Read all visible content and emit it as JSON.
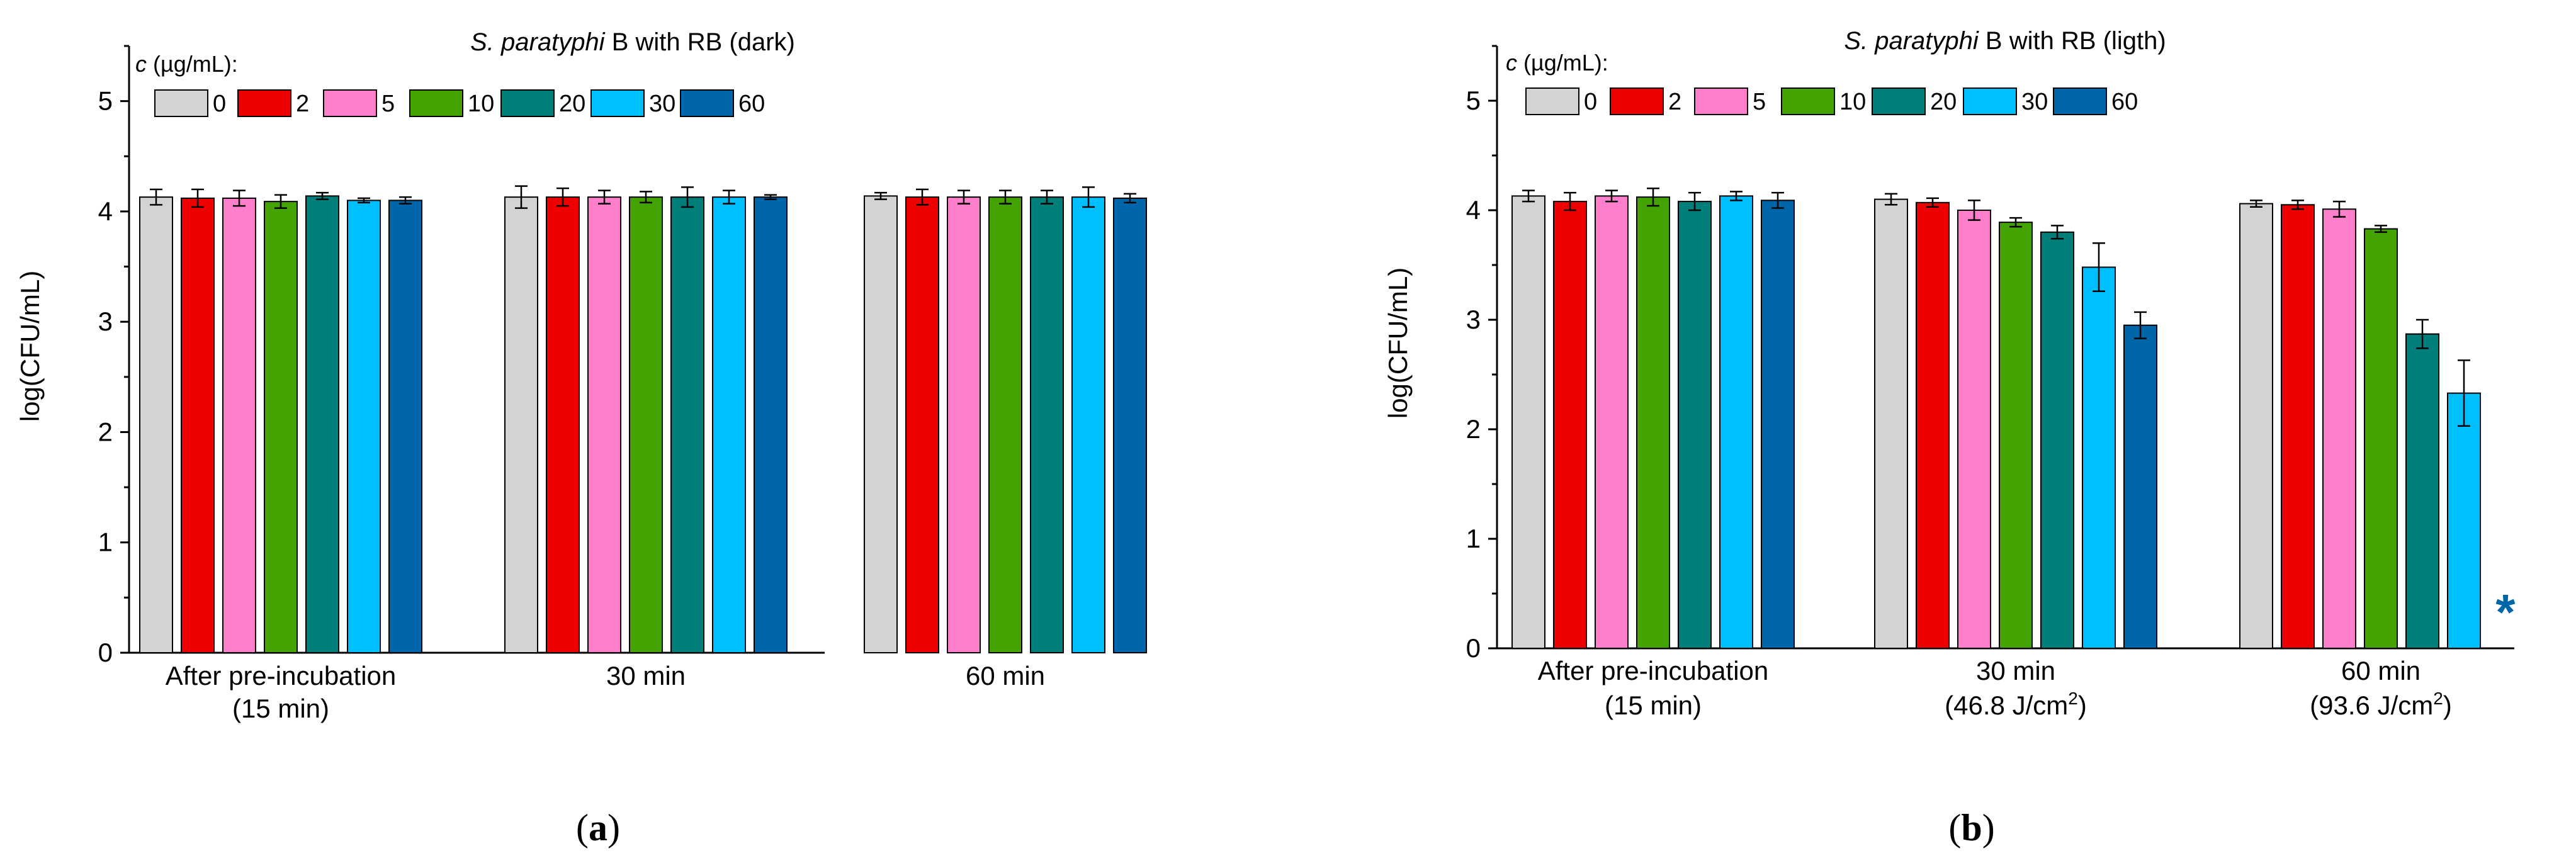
{
  "figure": {
    "panel_labels": [
      "a",
      "b"
    ]
  },
  "chart_data": [
    {
      "type": "bar",
      "panel": "a",
      "title_italic": "S. paratyphi",
      "title_rest": " B with RB (dark)",
      "ylabel": "log(CFU/mL)",
      "xlabel": "",
      "ylim": [
        0,
        5.5
      ],
      "yticks": [
        0,
        1,
        2,
        3,
        4,
        5
      ],
      "legend_title_italic": "c",
      "legend_title_rest": " (µg/mL):",
      "legend_position": "top-left",
      "groups": [
        {
          "line1": "After pre-incubation",
          "line2": "(15 min)",
          "sup": ""
        },
        {
          "line1": "30 min",
          "line2": "",
          "sup": ""
        },
        {
          "line1": "60 min",
          "line2": "",
          "sup": ""
        }
      ],
      "series": [
        {
          "name": "0",
          "color": "#d3d3d3",
          "values": [
            4.13,
            4.13,
            4.14
          ],
          "errors": [
            0.07,
            0.1,
            0.03
          ]
        },
        {
          "name": "2",
          "color": "#ee0000",
          "values": [
            4.12,
            4.13,
            4.13
          ],
          "errors": [
            0.08,
            0.08,
            0.07
          ]
        },
        {
          "name": "5",
          "color": "#ff7fcc",
          "values": [
            4.12,
            4.13,
            4.13
          ],
          "errors": [
            0.07,
            0.06,
            0.06
          ]
        },
        {
          "name": "10",
          "color": "#44a300",
          "values": [
            4.09,
            4.13,
            4.13
          ],
          "errors": [
            0.06,
            0.05,
            0.06
          ]
        },
        {
          "name": "20",
          "color": "#007f7a",
          "values": [
            4.14,
            4.13,
            4.13
          ],
          "errors": [
            0.03,
            0.09,
            0.06
          ]
        },
        {
          "name": "30",
          "color": "#00bfff",
          "values": [
            4.1,
            4.13,
            4.13
          ],
          "errors": [
            0.02,
            0.06,
            0.09
          ]
        },
        {
          "name": "60",
          "color": "#0066aa",
          "values": [
            4.1,
            4.13,
            4.12
          ],
          "errors": [
            0.03,
            0.02,
            0.04
          ]
        }
      ],
      "annotations": []
    },
    {
      "type": "bar",
      "panel": "b",
      "title_italic": "S. paratyphi",
      "title_rest": " B with RB (ligth)",
      "ylabel": "log(CFU/mL)",
      "xlabel": "",
      "ylim": [
        0,
        5.5
      ],
      "yticks": [
        0,
        1,
        2,
        3,
        4,
        5
      ],
      "legend_title_italic": "c",
      "legend_title_rest": " (µg/mL):",
      "legend_position": "top-left",
      "groups": [
        {
          "line1": "After pre-incubation",
          "line2": "(15 min)",
          "sup": ""
        },
        {
          "line1": "30 min",
          "line2": "(46.8 J/cm",
          "sup": "2"
        },
        {
          "line1": "60 min",
          "line2": "(93.6 J/cm",
          "sup": "2"
        }
      ],
      "series": [
        {
          "name": "0",
          "color": "#d3d3d3",
          "values": [
            4.13,
            4.1,
            4.06
          ],
          "errors": [
            0.05,
            0.05,
            0.03
          ]
        },
        {
          "name": "2",
          "color": "#ee0000",
          "values": [
            4.08,
            4.07,
            4.05
          ],
          "errors": [
            0.08,
            0.04,
            0.04
          ]
        },
        {
          "name": "5",
          "color": "#ff7fcc",
          "values": [
            4.13,
            4.0,
            4.01
          ],
          "errors": [
            0.05,
            0.09,
            0.07
          ]
        },
        {
          "name": "10",
          "color": "#44a300",
          "values": [
            4.12,
            3.89,
            3.83
          ],
          "errors": [
            0.08,
            0.04,
            0.03
          ]
        },
        {
          "name": "20",
          "color": "#007f7a",
          "values": [
            4.08,
            3.8,
            2.87
          ],
          "errors": [
            0.08,
            0.06,
            0.13
          ]
        },
        {
          "name": "30",
          "color": "#00bfff",
          "values": [
            4.13,
            3.48,
            2.33
          ],
          "errors": [
            0.04,
            0.22,
            0.3
          ]
        },
        {
          "name": "60",
          "color": "#0066aa",
          "values": [
            4.09,
            2.95,
            null
          ],
          "errors": [
            0.07,
            0.12,
            null
          ]
        }
      ],
      "annotations": [
        {
          "text": "*",
          "series": "60",
          "group": 2,
          "color": "#0066aa"
        }
      ]
    }
  ]
}
